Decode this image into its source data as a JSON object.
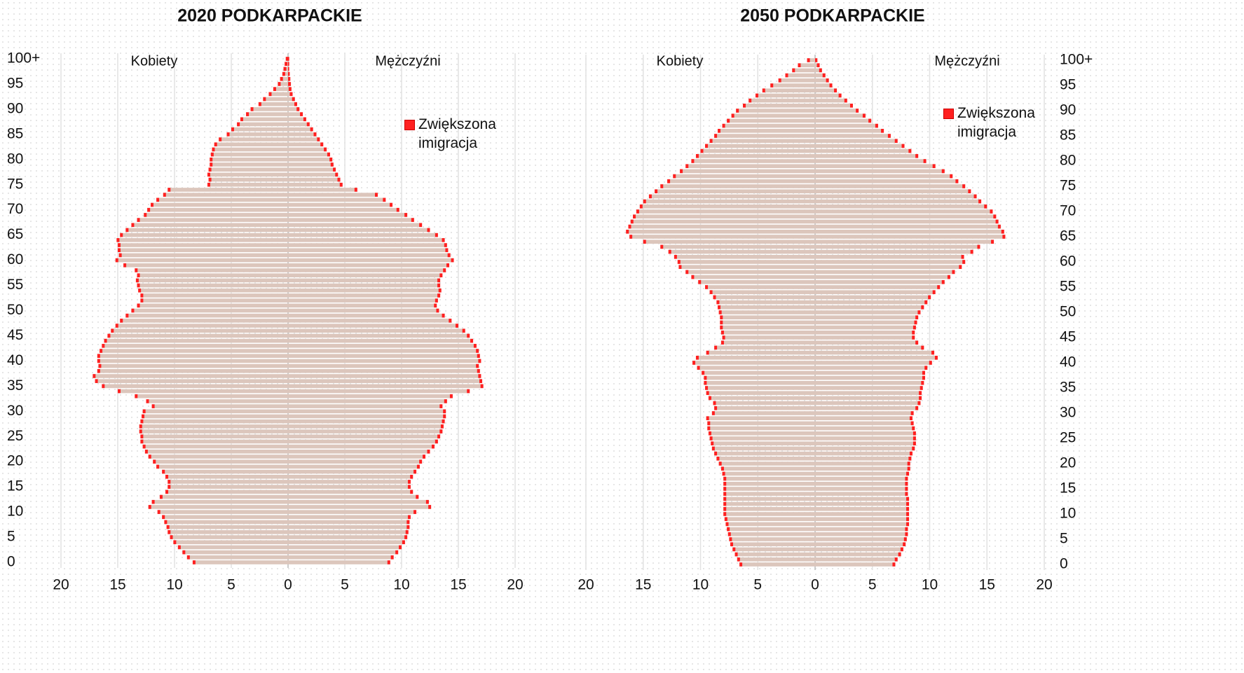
{
  "chart_data": [
    {
      "type": "pyramid",
      "title": "2020 PODKARPACKIE",
      "yaxis_side": "left",
      "bar_color": "#dcc6bc",
      "marker_color": "#ff2020",
      "legend": "Zwiększona imigracja",
      "categories": [
        "0",
        null,
        null,
        null,
        null,
        "5",
        null,
        null,
        null,
        null,
        "10",
        null,
        null,
        null,
        null,
        "15",
        null,
        null,
        null,
        null,
        "20",
        null,
        null,
        null,
        null,
        "25",
        null,
        null,
        null,
        null,
        "30",
        null,
        null,
        null,
        null,
        "35",
        null,
        null,
        null,
        null,
        "40",
        null,
        null,
        null,
        null,
        "45",
        null,
        null,
        null,
        null,
        "50",
        null,
        null,
        null,
        null,
        "55",
        null,
        null,
        null,
        null,
        "60",
        null,
        null,
        null,
        null,
        "65",
        null,
        null,
        null,
        null,
        "70",
        null,
        null,
        null,
        null,
        "75",
        null,
        null,
        null,
        null,
        "80",
        null,
        null,
        null,
        null,
        "85",
        null,
        null,
        null,
        null,
        "90",
        null,
        null,
        null,
        null,
        "95",
        null,
        null,
        null,
        null,
        "100+"
      ],
      "series": [
        {
          "name": "Kobiety",
          "side": "left",
          "values": [
            8.4,
            8.9,
            9.3,
            9.7,
            10.1,
            10.4,
            10.6,
            10.7,
            10.9,
            11.1,
            11.5,
            12.3,
            12.0,
            11.3,
            10.8,
            10.6,
            10.6,
            10.8,
            11.1,
            11.6,
            11.9,
            12.3,
            12.6,
            12.8,
            13.0,
            13.0,
            13.1,
            13.1,
            13.0,
            12.9,
            12.8,
            12.0,
            12.5,
            13.5,
            15.0,
            16.4,
            17.0,
            17.2,
            16.8,
            16.7,
            16.8,
            16.8,
            16.6,
            16.4,
            16.2,
            15.9,
            15.6,
            15.2,
            14.8,
            14.3,
            13.8,
            13.3,
            13.0,
            13.0,
            13.2,
            13.3,
            13.4,
            13.3,
            13.5,
            14.5,
            15.2,
            14.9,
            15.0,
            15.0,
            15.1,
            14.8,
            14.3,
            13.8,
            13.3,
            12.7,
            12.4,
            12.1,
            11.6,
            11.0,
            10.6,
            7.1,
            7.0,
            7.1,
            7.0,
            6.9,
            6.9,
            6.8,
            6.7,
            6.5,
            6.1,
            5.4,
            5.0,
            4.5,
            4.2,
            3.7,
            3.3,
            2.6,
            2.2,
            1.7,
            1.3,
            0.9,
            0.7,
            0.5,
            0.4,
            0.3,
            0.2
          ]
        },
        {
          "name": "Mężczyźni",
          "side": "right",
          "values": [
            9.0,
            9.3,
            9.7,
            10.0,
            10.3,
            10.5,
            10.6,
            10.7,
            10.7,
            10.8,
            11.3,
            12.6,
            12.4,
            11.5,
            11.0,
            10.8,
            10.8,
            11.0,
            11.3,
            11.6,
            11.8,
            12.1,
            12.5,
            12.9,
            13.2,
            13.4,
            13.6,
            13.7,
            13.8,
            13.9,
            13.9,
            13.6,
            14.0,
            14.5,
            16.0,
            17.2,
            17.1,
            17.0,
            16.9,
            16.8,
            17.0,
            16.9,
            16.8,
            16.6,
            16.3,
            16.0,
            15.6,
            15.0,
            14.4,
            13.8,
            13.3,
            13.1,
            13.2,
            13.4,
            13.5,
            13.4,
            13.4,
            13.6,
            13.9,
            14.2,
            14.6,
            14.3,
            14.1,
            14.0,
            13.8,
            13.2,
            12.5,
            11.8,
            11.1,
            10.5,
            9.8,
            9.2,
            8.6,
            7.9,
            6.1,
            4.8,
            4.6,
            4.4,
            4.2,
            4.0,
            3.9,
            3.7,
            3.4,
            3.1,
            2.8,
            2.5,
            2.2,
            1.9,
            1.6,
            1.3,
            1.0,
            0.8,
            0.6,
            0.4,
            0.3,
            0.25,
            0.2,
            0.15,
            0.1,
            0.1,
            0.1
          ]
        }
      ],
      "xlim": [
        -20,
        20
      ],
      "xticks": [
        {
          "value": -20,
          "label": "20"
        },
        {
          "value": -15,
          "label": "15"
        },
        {
          "value": -10,
          "label": "10"
        },
        {
          "value": -5,
          "label": "5"
        },
        0,
        5,
        10,
        15,
        20
      ],
      "grid": true
    },
    {
      "type": "pyramid",
      "title": "2050 PODKARPACKIE",
      "yaxis_side": "right",
      "bar_color": "#dcc6bc",
      "marker_color": "#ff2020",
      "legend": "Zwiększona imigracja",
      "categories": [
        "0",
        null,
        null,
        null,
        null,
        "5",
        null,
        null,
        null,
        null,
        "10",
        null,
        null,
        null,
        null,
        "15",
        null,
        null,
        null,
        null,
        "20",
        null,
        null,
        null,
        null,
        "25",
        null,
        null,
        null,
        null,
        "30",
        null,
        null,
        null,
        null,
        "35",
        null,
        null,
        null,
        null,
        "40",
        null,
        null,
        null,
        null,
        "45",
        null,
        null,
        null,
        null,
        "50",
        null,
        null,
        null,
        null,
        "55",
        null,
        null,
        null,
        null,
        "60",
        null,
        null,
        null,
        null,
        "65",
        null,
        null,
        null,
        null,
        "70",
        null,
        null,
        null,
        null,
        "75",
        null,
        null,
        null,
        null,
        "80",
        null,
        null,
        null,
        null,
        "85",
        null,
        null,
        null,
        null,
        "90",
        null,
        null,
        null,
        null,
        "95",
        null,
        null,
        null,
        null,
        "100+"
      ],
      "series": [
        {
          "name": "Kobiety",
          "side": "left",
          "values": [
            6.6,
            6.8,
            7.0,
            7.2,
            7.4,
            7.5,
            7.6,
            7.7,
            7.8,
            7.9,
            8.0,
            8.0,
            8.0,
            8.0,
            8.0,
            8.0,
            8.0,
            8.0,
            8.1,
            8.2,
            8.4,
            8.6,
            8.8,
            9.0,
            9.1,
            9.2,
            9.3,
            9.4,
            9.4,
            9.5,
            9.0,
            8.8,
            8.9,
            9.3,
            9.5,
            9.6,
            9.7,
            9.7,
            9.9,
            10.3,
            10.7,
            10.4,
            9.5,
            8.8,
            8.2,
            8.1,
            8.2,
            8.3,
            8.3,
            8.3,
            8.4,
            8.5,
            8.6,
            8.9,
            9.2,
            9.6,
            10.2,
            10.8,
            11.3,
            11.9,
            12.0,
            12.3,
            12.8,
            13.5,
            15.0,
            16.2,
            16.5,
            16.3,
            16.1,
            15.9,
            15.6,
            15.3,
            15.0,
            14.5,
            14.0,
            13.5,
            12.9,
            12.4,
            11.8,
            11.3,
            10.8,
            10.4,
            10.0,
            9.6,
            9.2,
            8.8,
            8.5,
            8.1,
            7.7,
            7.3,
            6.9,
            6.3,
            5.8,
            5.2,
            4.6,
            3.9,
            3.2,
            2.6,
            2.0,
            1.5,
            0.7
          ]
        },
        {
          "name": "Mężczyźni",
          "side": "right",
          "values": [
            7.0,
            7.2,
            7.5,
            7.7,
            7.9,
            8.0,
            8.1,
            8.1,
            8.2,
            8.2,
            8.2,
            8.2,
            8.2,
            8.2,
            8.1,
            8.1,
            8.1,
            8.1,
            8.2,
            8.3,
            8.3,
            8.4,
            8.5,
            8.7,
            8.8,
            8.8,
            8.8,
            8.7,
            8.6,
            8.5,
            8.6,
            9.0,
            9.2,
            9.3,
            9.3,
            9.4,
            9.5,
            9.6,
            9.6,
            9.8,
            10.2,
            10.7,
            10.4,
            9.5,
            9.0,
            8.7,
            8.7,
            8.8,
            8.9,
            9.0,
            9.2,
            9.5,
            9.8,
            10.1,
            10.5,
            10.9,
            11.3,
            11.8,
            12.2,
            12.8,
            13.1,
            13.0,
            13.8,
            14.4,
            15.6,
            16.6,
            16.5,
            16.2,
            16.0,
            15.8,
            15.5,
            15.0,
            14.5,
            14.1,
            13.6,
            13.1,
            12.5,
            12.0,
            11.3,
            10.5,
            9.7,
            9.0,
            8.4,
            7.8,
            7.2,
            6.6,
            6.0,
            5.5,
            4.9,
            4.4,
            3.8,
            3.3,
            2.8,
            2.3,
            1.9,
            1.5,
            1.2,
            0.9,
            0.6,
            0.4,
            0.2
          ]
        }
      ],
      "xlim": [
        -20,
        20
      ],
      "xticks": [
        {
          "value": -20,
          "label": "20"
        },
        {
          "value": -15,
          "label": "15"
        },
        {
          "value": -10,
          "label": "10"
        },
        {
          "value": -5,
          "label": "5"
        },
        0,
        5,
        10,
        15,
        20
      ],
      "grid": true
    }
  ]
}
